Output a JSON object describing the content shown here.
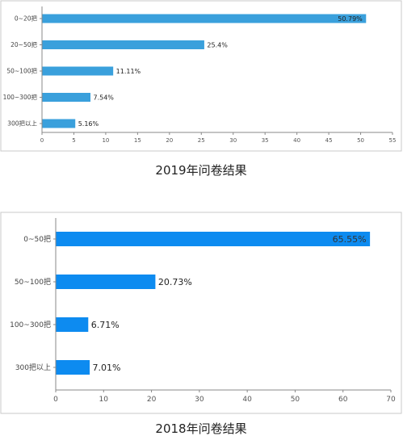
{
  "chart_data": [
    {
      "type": "bar",
      "orientation": "horizontal",
      "title": "2019年问卷结果",
      "categories": [
        "0~20把",
        "20~50把",
        "50~100把",
        "100~300把",
        "300把以上"
      ],
      "values": [
        50.79,
        25.4,
        11.11,
        7.54,
        5.16
      ],
      "value_labels": [
        "50.79%",
        "25.4%",
        "11.11%",
        "7.54%",
        "5.16%"
      ],
      "xlim": [
        0,
        55
      ],
      "xticks": [
        "0",
        "5",
        "10",
        "15",
        "20",
        "25",
        "30",
        "35",
        "40",
        "45",
        "50",
        "55"
      ],
      "xlabel": "",
      "ylabel": "",
      "color": "#3aa0dc",
      "grid": false
    },
    {
      "type": "bar",
      "orientation": "horizontal",
      "title": "2018年问卷结果",
      "categories": [
        "0~50把",
        "50~100把",
        "100~300把",
        "300把以上"
      ],
      "values": [
        65.55,
        20.73,
        6.71,
        7.01
      ],
      "value_labels": [
        "65.55%",
        "20.73%",
        "6.71%",
        "7.01%"
      ],
      "xlim": [
        0,
        70
      ],
      "xticks": [
        "0",
        "10",
        "20",
        "30",
        "40",
        "50",
        "60",
        "70"
      ],
      "xlabel": "",
      "ylabel": "",
      "color": "#0d8bf0",
      "grid": false
    }
  ]
}
